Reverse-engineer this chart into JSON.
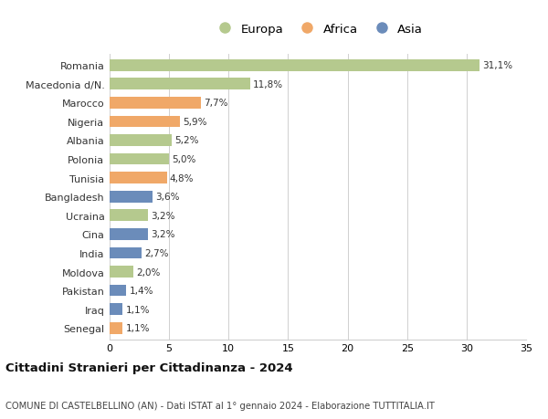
{
  "countries": [
    "Romania",
    "Macedonia d/N.",
    "Marocco",
    "Nigeria",
    "Albania",
    "Polonia",
    "Tunisia",
    "Bangladesh",
    "Ucraina",
    "Cina",
    "India",
    "Moldova",
    "Pakistan",
    "Iraq",
    "Senegal"
  ],
  "values": [
    31.1,
    11.8,
    7.7,
    5.9,
    5.2,
    5.0,
    4.8,
    3.6,
    3.2,
    3.2,
    2.7,
    2.0,
    1.4,
    1.1,
    1.1
  ],
  "labels": [
    "31,1%",
    "11,8%",
    "7,7%",
    "5,9%",
    "5,2%",
    "5,0%",
    "4,8%",
    "3,6%",
    "3,2%",
    "3,2%",
    "2,7%",
    "2,0%",
    "1,4%",
    "1,1%",
    "1,1%"
  ],
  "continents": [
    "Europa",
    "Europa",
    "Africa",
    "Africa",
    "Europa",
    "Europa",
    "Africa",
    "Asia",
    "Europa",
    "Asia",
    "Asia",
    "Europa",
    "Asia",
    "Asia",
    "Africa"
  ],
  "colors": {
    "Europa": "#b5c98e",
    "Africa": "#f0a868",
    "Asia": "#6b8cba"
  },
  "xlim": [
    0,
    35
  ],
  "xticks": [
    0,
    5,
    10,
    15,
    20,
    25,
    30,
    35
  ],
  "title": "Cittadini Stranieri per Cittadinanza - 2024",
  "subtitle": "COMUNE DI CASTELBELLINO (AN) - Dati ISTAT al 1° gennaio 2024 - Elaborazione TUTTITALIA.IT",
  "background_color": "#ffffff",
  "grid_color": "#d0d0d0",
  "bar_height": 0.62
}
